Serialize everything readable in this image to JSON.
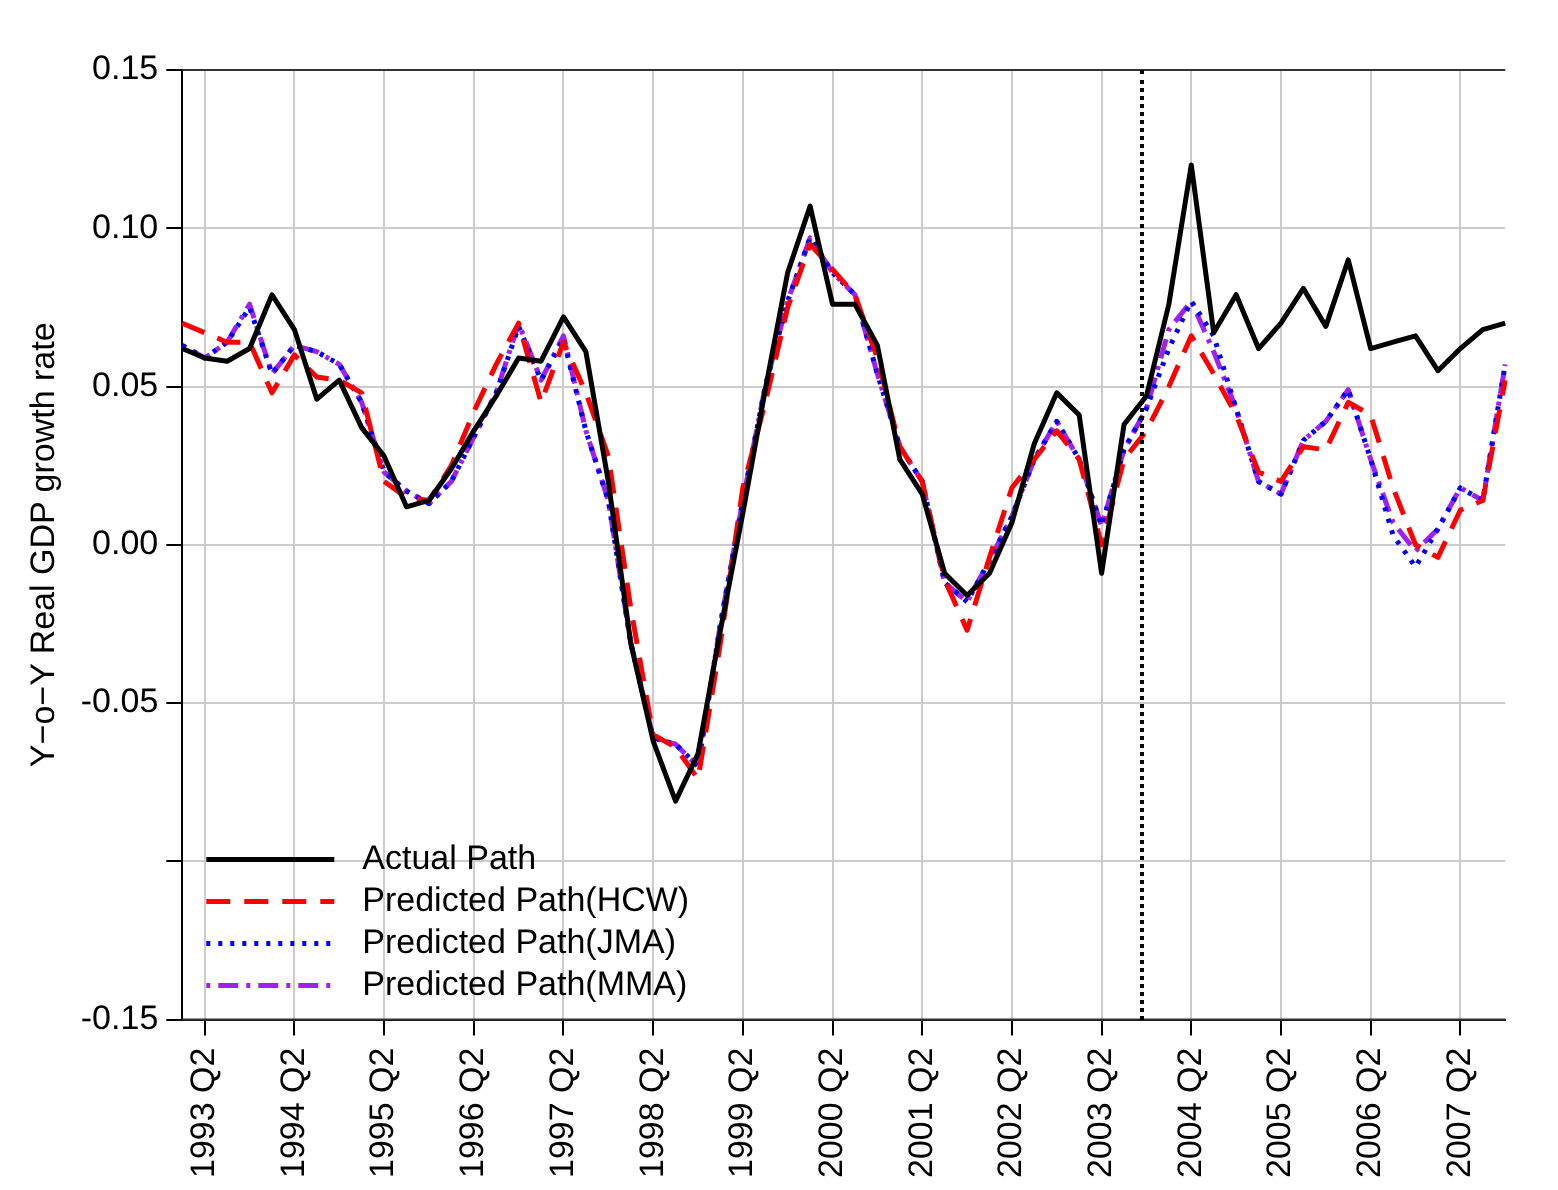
{
  "chart_data": {
    "type": "line",
    "ylabel": "Y−o−Y Real GDP growth rate",
    "categories": [
      null,
      "1993 Q2",
      null,
      null,
      null,
      "1994 Q2",
      null,
      null,
      null,
      "1995 Q2",
      null,
      null,
      null,
      "1996 Q2",
      null,
      null,
      null,
      "1997 Q2",
      null,
      null,
      null,
      "1998 Q2",
      null,
      null,
      null,
      "1999 Q2",
      null,
      null,
      null,
      "2000 Q2",
      null,
      null,
      null,
      "2001 Q2",
      null,
      null,
      null,
      "2002 Q2",
      null,
      null,
      null,
      "2003 Q2",
      null,
      null,
      null,
      "2004 Q2",
      null,
      null,
      null,
      "2005 Q2",
      null,
      null,
      null,
      "2006 Q2",
      null,
      null,
      null,
      "2007 Q2",
      null,
      null
    ],
    "series": [
      {
        "name": "Actual Path",
        "color": "#000000",
        "line_style": "solid",
        "values": [
          0.062,
          0.059,
          0.058,
          0.062,
          0.079,
          0.068,
          0.046,
          0.052,
          0.037,
          0.028,
          0.012,
          0.014,
          0.024,
          0.036,
          0.047,
          0.059,
          0.058,
          0.072,
          0.061,
          0.02,
          -0.031,
          -0.062,
          -0.081,
          -0.066,
          -0.027,
          0.01,
          0.049,
          0.086,
          0.107,
          0.076,
          0.076,
          0.063,
          0.027,
          0.016,
          -0.009,
          -0.016,
          -0.009,
          0.007,
          0.032,
          0.048,
          0.041,
          -0.009,
          0.038,
          0.047,
          0.076,
          0.12,
          0.067,
          0.079,
          0.062,
          0.07,
          0.081,
          0.069,
          0.09,
          0.062,
          0.064,
          0.066,
          0.055,
          0.062,
          0.068,
          0.07
        ]
      },
      {
        "name": "Predicted Path(HCW)",
        "color": "#ff0000",
        "line_style": "dashed",
        "values": [
          0.07,
          0.067,
          0.064,
          0.064,
          0.048,
          0.06,
          0.053,
          0.052,
          0.048,
          0.02,
          0.015,
          0.014,
          0.025,
          0.042,
          0.057,
          0.07,
          0.045,
          0.064,
          0.048,
          0.028,
          -0.02,
          -0.06,
          -0.064,
          -0.074,
          -0.031,
          0.018,
          0.045,
          0.075,
          0.095,
          0.087,
          0.079,
          0.059,
          0.031,
          0.02,
          -0.011,
          -0.027,
          -0.004,
          0.018,
          0.027,
          0.036,
          0.027,
          0.0,
          0.027,
          0.036,
          0.05,
          0.066,
          0.054,
          0.041,
          0.023,
          0.02,
          0.031,
          0.03,
          0.045,
          0.041,
          0.018,
          0.0,
          -0.004,
          0.011,
          0.014,
          0.052
        ]
      },
      {
        "name": "Predicted Path(JMA)",
        "color": "#0000ff",
        "line_style": "dotted",
        "values": [
          0.063,
          0.059,
          0.064,
          0.075,
          0.054,
          0.063,
          0.061,
          0.057,
          0.045,
          0.023,
          0.017,
          0.013,
          0.02,
          0.034,
          0.048,
          0.069,
          0.052,
          0.065,
          0.036,
          0.014,
          -0.031,
          -0.061,
          -0.063,
          -0.07,
          -0.025,
          0.014,
          0.05,
          0.077,
          0.097,
          0.086,
          0.079,
          0.054,
          0.031,
          0.02,
          -0.012,
          -0.018,
          -0.005,
          0.009,
          0.027,
          0.039,
          0.027,
          0.006,
          0.03,
          0.043,
          0.062,
          0.077,
          0.066,
          0.043,
          0.02,
          0.016,
          0.033,
          0.039,
          0.049,
          0.027,
          0.003,
          -0.007,
          0.005,
          0.018,
          0.014,
          0.057
        ]
      },
      {
        "name": "Predicted Path(MMA)",
        "color": "#a020f0",
        "line_style": "dashdot",
        "values": [
          0.063,
          0.059,
          0.064,
          0.076,
          0.054,
          0.063,
          0.061,
          0.057,
          0.045,
          0.023,
          0.017,
          0.013,
          0.02,
          0.034,
          0.048,
          0.07,
          0.052,
          0.066,
          0.036,
          0.014,
          -0.031,
          -0.061,
          -0.063,
          -0.07,
          -0.025,
          0.014,
          0.05,
          0.077,
          0.097,
          0.086,
          0.079,
          0.054,
          0.031,
          0.02,
          -0.012,
          -0.018,
          -0.005,
          0.009,
          0.027,
          0.039,
          0.027,
          0.006,
          0.03,
          0.043,
          0.068,
          0.077,
          0.061,
          0.043,
          0.02,
          0.016,
          0.033,
          0.039,
          0.049,
          0.027,
          0.007,
          -0.002,
          0.005,
          0.018,
          0.014,
          0.057
        ]
      }
    ],
    "ylim": [
      -0.15,
      0.15
    ],
    "yticks": [
      -0.15,
      {
        "value": -0.1,
        "label": null
      },
      -0.05,
      {
        "value": 0,
        "label": "0.00"
      },
      0.05,
      {
        "value": 0.1,
        "label": "0.10"
      },
      0.15
    ],
    "grid": true,
    "legend": "bottom left"
  }
}
